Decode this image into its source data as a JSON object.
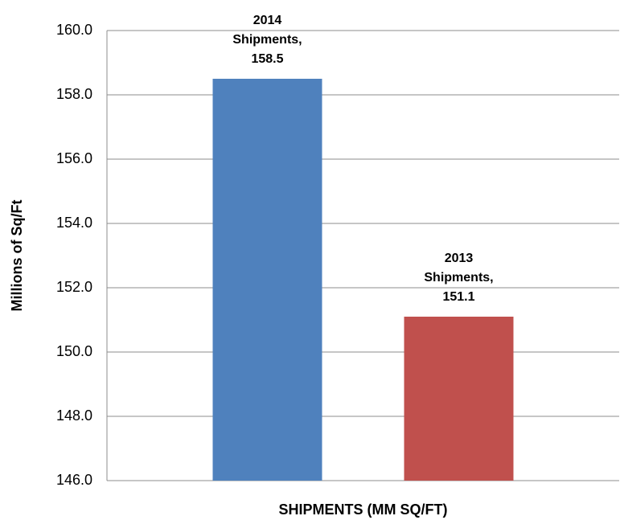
{
  "chart_data": {
    "type": "bar",
    "categories": [
      "SHIPMENTS (MM SQ/FT)"
    ],
    "y_label": "Millions of Sq/Ft",
    "series": [
      {
        "name": "2014 Shipments",
        "color": "#4f81bd",
        "values": [
          158.5
        ],
        "value_labels": [
          "2014 Shipments, 158.5"
        ]
      },
      {
        "name": "2013 Shipments",
        "color": "#c0504d",
        "values": [
          151.1
        ],
        "value_labels": [
          "2013 Shipments, 151.1"
        ]
      }
    ],
    "ylim": [
      146,
      160
    ],
    "yticks": [
      {
        "value": 146,
        "label": "146.0"
      },
      {
        "value": 148,
        "label": "148.0"
      },
      {
        "value": 150,
        "label": "150.0"
      },
      {
        "value": 152,
        "label": "152.0"
      },
      {
        "value": 154,
        "label": "154.0"
      },
      {
        "value": 156,
        "label": "156.0"
      },
      {
        "value": 158,
        "label": "158.0"
      },
      {
        "value": 160,
        "label": "160.0"
      }
    ],
    "grid": true
  }
}
